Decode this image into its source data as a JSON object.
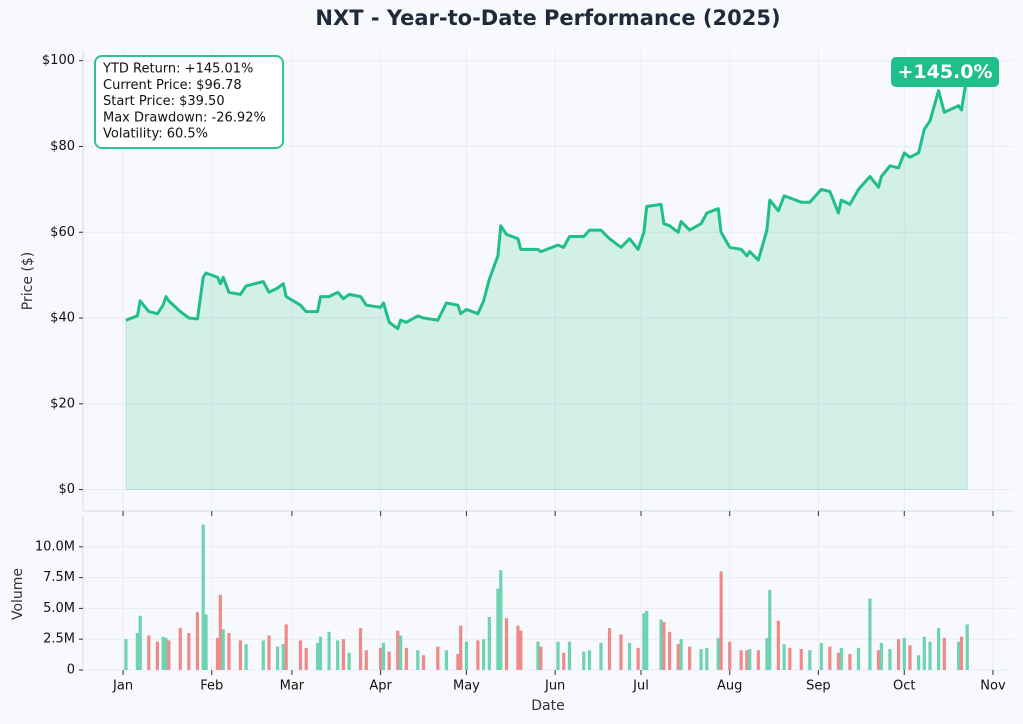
{
  "chart_data": [
    {
      "type": "line",
      "title": "NXT - Year-to-Date Performance (2025)",
      "y_label": "Price ($)",
      "x": [
        "2025-01-02",
        "2025-01-06",
        "2025-01-07",
        "2025-01-10",
        "2025-01-13",
        "2025-01-15",
        "2025-01-16",
        "2025-01-17",
        "2025-01-21",
        "2025-01-24",
        "2025-01-27",
        "2025-01-29",
        "2025-01-30",
        "2025-02-03",
        "2025-02-04",
        "2025-02-05",
        "2025-02-07",
        "2025-02-11",
        "2025-02-13",
        "2025-02-19",
        "2025-02-21",
        "2025-02-24",
        "2025-02-26",
        "2025-02-27",
        "2025-03-04",
        "2025-03-06",
        "2025-03-10",
        "2025-03-11",
        "2025-03-14",
        "2025-03-17",
        "2025-03-19",
        "2025-03-21",
        "2025-03-25",
        "2025-03-27",
        "2025-04-01",
        "2025-04-02",
        "2025-04-04",
        "2025-04-07",
        "2025-04-08",
        "2025-04-10",
        "2025-04-14",
        "2025-04-16",
        "2025-04-21",
        "2025-04-24",
        "2025-04-28",
        "2025-04-29",
        "2025-05-01",
        "2025-05-05",
        "2025-05-07",
        "2025-05-09",
        "2025-05-12",
        "2025-05-13",
        "2025-05-15",
        "2025-05-19",
        "2025-05-20",
        "2025-05-26",
        "2025-05-27",
        "2025-06-02",
        "2025-06-04",
        "2025-06-06",
        "2025-06-11",
        "2025-06-13",
        "2025-06-17",
        "2025-06-20",
        "2025-06-24",
        "2025-06-27",
        "2025-06-30",
        "2025-07-02",
        "2025-07-03",
        "2025-07-08",
        "2025-07-09",
        "2025-07-11",
        "2025-07-14",
        "2025-07-15",
        "2025-07-18",
        "2025-07-22",
        "2025-07-24",
        "2025-07-28",
        "2025-07-29",
        "2025-08-01",
        "2025-08-05",
        "2025-08-07",
        "2025-08-08",
        "2025-08-11",
        "2025-08-14",
        "2025-08-15",
        "2025-08-18",
        "2025-08-20",
        "2025-08-22",
        "2025-08-26",
        "2025-08-29",
        "2025-09-02",
        "2025-09-05",
        "2025-09-08",
        "2025-09-09",
        "2025-09-12",
        "2025-09-15",
        "2025-09-19",
        "2025-09-22",
        "2025-09-23",
        "2025-09-26",
        "2025-09-29",
        "2025-10-01",
        "2025-10-03",
        "2025-10-06",
        "2025-10-08",
        "2025-10-10",
        "2025-10-13",
        "2025-10-15",
        "2025-10-20",
        "2025-10-21",
        "2025-10-23"
      ],
      "series": [
        {
          "color": "#20bf8a",
          "values": [
            39.5,
            40.5,
            44,
            41.5,
            41,
            43,
            45,
            44,
            41.5,
            40,
            39.8,
            49.5,
            50.5,
            49.5,
            48,
            49.5,
            46,
            45.5,
            47.5,
            48.5,
            46,
            47,
            48,
            45,
            43,
            41.5,
            41.5,
            45,
            45,
            46,
            44.5,
            45.5,
            45,
            43,
            42.5,
            43.5,
            39,
            37.5,
            39.5,
            39,
            40.5,
            40,
            39.5,
            43.5,
            43,
            41,
            42,
            41,
            44,
            49,
            54.5,
            61.5,
            59.5,
            58.5,
            56,
            56,
            55.5,
            57,
            56.5,
            59,
            59,
            60.5,
            60.5,
            58.5,
            56.5,
            58.5,
            56,
            60,
            66,
            66.5,
            62,
            61.5,
            60,
            62.5,
            60.5,
            62,
            64.5,
            65.5,
            60,
            56.5,
            56,
            54.5,
            55.5,
            53.5,
            60.5,
            67.5,
            65,
            68.5,
            68,
            67,
            67,
            70,
            69.5,
            64.5,
            67.5,
            66.5,
            70,
            73,
            70.5,
            73,
            75.5,
            75,
            78.5,
            77.5,
            78.5,
            84,
            86,
            93,
            88,
            89.5,
            88.5,
            96.78
          ]
        }
      ],
      "xlim": [
        "2024-12-18",
        "2025-11-08"
      ],
      "ylim": [
        -5,
        102.5
      ],
      "yticks": [
        {
          "value": 0,
          "label": "$0"
        },
        {
          "value": 20,
          "label": "$20"
        },
        {
          "value": 40,
          "label": "$40"
        },
        {
          "value": 60,
          "label": "$60"
        },
        {
          "value": 80,
          "label": "$80"
        },
        {
          "value": 100,
          "label": "$100"
        }
      ],
      "grid": true,
      "stats": [
        "YTD Return: +145.01%",
        "Current Price: $96.78",
        "Start Price: $39.50",
        "Max Drawdown: -26.92%",
        "Volatility: 60.5%"
      ],
      "badge": "+145.0%"
    },
    {
      "type": "bar",
      "y_label": "Volume",
      "x_label": "Date",
      "up_color": "#6dd3b0",
      "down_color": "#ef8a8a",
      "x": [
        "2025-01-02",
        "2025-01-06",
        "2025-01-07",
        "2025-01-10",
        "2025-01-13",
        "2025-01-15",
        "2025-01-16",
        "2025-01-17",
        "2025-01-21",
        "2025-01-24",
        "2025-01-27",
        "2025-01-29",
        "2025-01-30",
        "2025-02-03",
        "2025-02-04",
        "2025-02-05",
        "2025-02-07",
        "2025-02-11",
        "2025-02-13",
        "2025-02-19",
        "2025-02-21",
        "2025-02-24",
        "2025-02-26",
        "2025-02-27",
        "2025-03-04",
        "2025-03-06",
        "2025-03-10",
        "2025-03-11",
        "2025-03-14",
        "2025-03-17",
        "2025-03-19",
        "2025-03-21",
        "2025-03-25",
        "2025-03-27",
        "2025-04-01",
        "2025-04-02",
        "2025-04-04",
        "2025-04-07",
        "2025-04-08",
        "2025-04-10",
        "2025-04-14",
        "2025-04-16",
        "2025-04-21",
        "2025-04-24",
        "2025-04-28",
        "2025-04-29",
        "2025-05-01",
        "2025-05-05",
        "2025-05-07",
        "2025-05-09",
        "2025-05-12",
        "2025-05-13",
        "2025-05-15",
        "2025-05-19",
        "2025-05-20",
        "2025-05-26",
        "2025-05-27",
        "2025-06-02",
        "2025-06-04",
        "2025-06-06",
        "2025-06-11",
        "2025-06-13",
        "2025-06-17",
        "2025-06-20",
        "2025-06-24",
        "2025-06-27",
        "2025-06-30",
        "2025-07-02",
        "2025-07-03",
        "2025-07-08",
        "2025-07-09",
        "2025-07-11",
        "2025-07-14",
        "2025-07-15",
        "2025-07-18",
        "2025-07-22",
        "2025-07-24",
        "2025-07-28",
        "2025-07-29",
        "2025-08-01",
        "2025-08-05",
        "2025-08-07",
        "2025-08-08",
        "2025-08-11",
        "2025-08-14",
        "2025-08-15",
        "2025-08-18",
        "2025-08-20",
        "2025-08-22",
        "2025-08-26",
        "2025-08-29",
        "2025-09-02",
        "2025-09-05",
        "2025-09-08",
        "2025-09-09",
        "2025-09-12",
        "2025-09-15",
        "2025-09-19",
        "2025-09-22",
        "2025-09-23",
        "2025-09-26",
        "2025-09-29",
        "2025-10-01",
        "2025-10-03",
        "2025-10-06",
        "2025-10-08",
        "2025-10-10",
        "2025-10-13",
        "2025-10-15",
        "2025-10-20",
        "2025-10-21",
        "2025-10-23"
      ],
      "values": [
        2.5,
        3.0,
        4.4,
        2.8,
        2.3,
        2.7,
        2.6,
        2.4,
        3.4,
        3.0,
        4.7,
        11.8,
        4.5,
        2.6,
        6.1,
        3.3,
        3.0,
        2.4,
        2.1,
        2.4,
        2.8,
        1.9,
        2.1,
        3.7,
        2.4,
        1.8,
        2.2,
        2.7,
        3.1,
        2.4,
        2.5,
        1.4,
        3.4,
        1.6,
        1.8,
        2.2,
        1.5,
        3.2,
        2.8,
        1.8,
        1.6,
        1.2,
        1.9,
        1.6,
        1.3,
        3.6,
        2.3,
        2.4,
        2.5,
        4.3,
        6.6,
        8.1,
        4.2,
        3.6,
        3.2,
        2.3,
        1.9,
        2.3,
        1.4,
        2.3,
        1.5,
        1.6,
        2.2,
        3.4,
        2.9,
        2.2,
        1.8,
        4.6,
        4.8,
        4.1,
        3.9,
        3.1,
        2.1,
        2.5,
        1.9,
        1.7,
        1.8,
        2.6,
        8.0,
        2.3,
        1.6,
        1.6,
        1.7,
        1.6,
        2.6,
        6.5,
        4.0,
        2.1,
        1.8,
        1.7,
        1.6,
        2.2,
        1.9,
        1.4,
        1.8,
        1.3,
        1.8,
        5.8,
        1.6,
        2.2,
        1.7,
        2.5,
        2.6,
        2.0,
        1.2,
        2.7,
        2.3,
        3.4,
        2.6,
        2.3,
        2.7,
        3.7
      ],
      "xlim": [
        "2024-12-18",
        "2025-11-08"
      ],
      "ylim": [
        0,
        12.5
      ],
      "xticks": [
        {
          "value": "2025-01-01",
          "label": "Jan"
        },
        {
          "value": "2025-02-01",
          "label": "Feb"
        },
        {
          "value": "2025-03-01",
          "label": "Mar"
        },
        {
          "value": "2025-04-01",
          "label": "Apr"
        },
        {
          "value": "2025-05-01",
          "label": "May"
        },
        {
          "value": "2025-06-01",
          "label": "Jun"
        },
        {
          "value": "2025-07-01",
          "label": "Jul"
        },
        {
          "value": "2025-08-01",
          "label": "Aug"
        },
        {
          "value": "2025-09-01",
          "label": "Sep"
        },
        {
          "value": "2025-10-01",
          "label": "Oct"
        },
        {
          "value": "2025-11-01",
          "label": "Nov"
        }
      ],
      "yticks": [
        0,
        {
          "value": 2.5,
          "label": "2.5M"
        },
        {
          "value": 5,
          "label": "5.0M"
        },
        {
          "value": 7.5,
          "label": "7.5M"
        },
        {
          "value": 10,
          "label": "10.0M"
        }
      ],
      "grid": true
    }
  ]
}
